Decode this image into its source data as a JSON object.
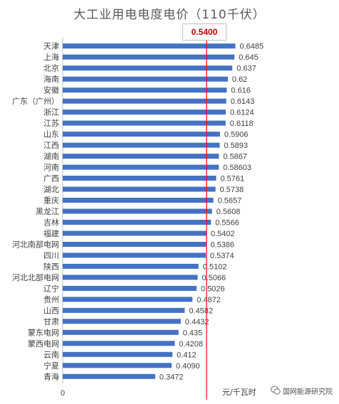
{
  "chart_data": {
    "type": "bar",
    "orientation": "horizontal",
    "title": "大工业用电电度电价（110千伏）",
    "reference_line": {
      "value": 0.54,
      "label": "0.5400",
      "color": "#ff0000"
    },
    "categories": [
      "天津",
      "上海",
      "北京",
      "海南",
      "安徽",
      "广东（广州）",
      "浙江",
      "江苏",
      "山东",
      "江西",
      "湖南",
      "河南",
      "广西",
      "湖北",
      "重庆",
      "黑龙江",
      "吉林",
      "福建",
      "河北南部电网",
      "四川",
      "陕西",
      "河北北部电网",
      "辽宁",
      "贵州",
      "山西",
      "甘肃",
      "蒙东电网",
      "蒙西电网",
      "云南",
      "宁夏",
      "青海"
    ],
    "values": [
      0.6485,
      0.645,
      0.637,
      0.62,
      0.616,
      0.6143,
      0.6124,
      0.6118,
      0.5906,
      0.5893,
      0.5867,
      0.58603,
      0.5761,
      0.5738,
      0.5657,
      0.5608,
      0.5566,
      0.5402,
      0.5386,
      0.5374,
      0.5102,
      0.5066,
      0.5026,
      0.4872,
      0.4582,
      0.4432,
      0.435,
      0.4208,
      0.412,
      0.409,
      0.3472
    ],
    "value_labels": [
      "0.6485",
      "0.645",
      "0.637",
      "0.62",
      "0.616",
      "0.6143",
      "0.6124",
      "0.6118",
      "0.5906",
      "0.5893",
      "0.5867",
      "0.58603",
      "0.5761",
      "0.5738",
      "0.5657",
      "0.5608",
      "0.5566",
      "0.5402",
      "0.5386",
      "0.5374",
      "0.5102",
      "0.5066",
      "0.5026",
      "0.4872",
      "0.4582",
      "0.4432",
      "0.435",
      "0.4208",
      "0.412",
      "0.4090",
      "0.3472"
    ],
    "x_tick_label": "0",
    "xlabel": "元/千瓦时",
    "xlim": [
      0,
      0.68
    ],
    "bar_color": "#4472c4",
    "grid": false
  },
  "watermark": {
    "text": "国网能源研究院",
    "icon": "wechat-icon"
  }
}
